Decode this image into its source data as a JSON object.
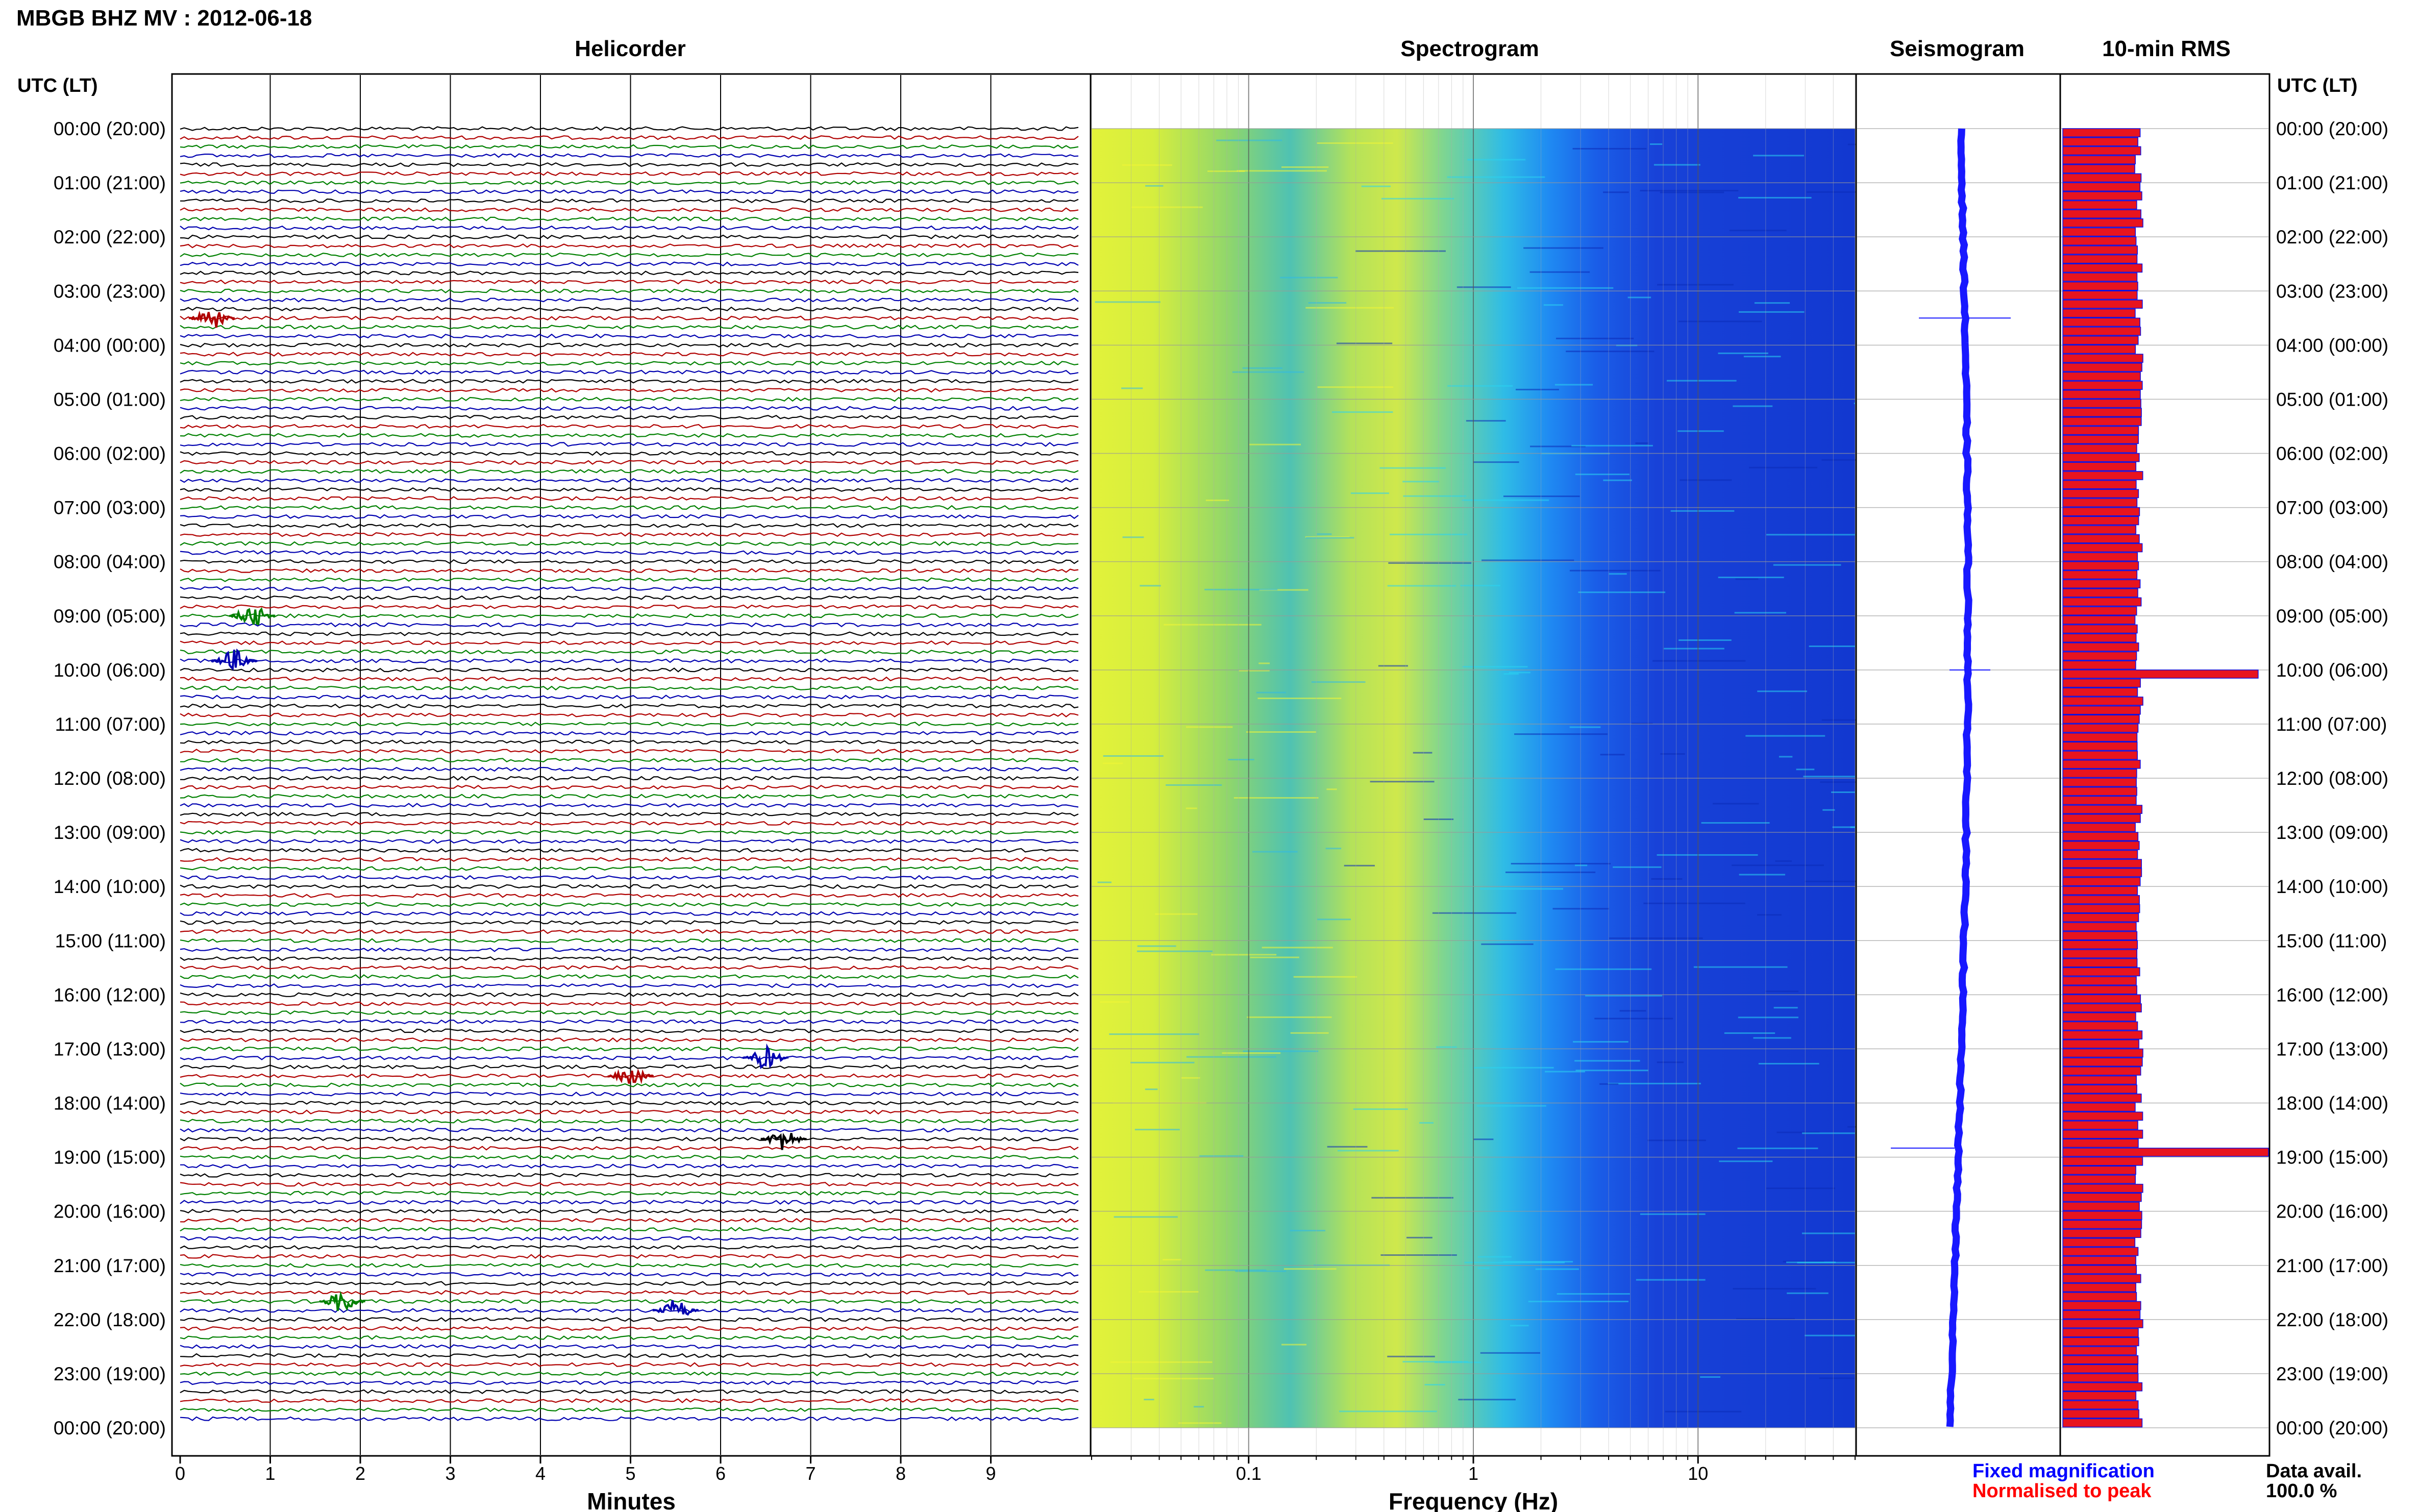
{
  "title": "MBGB BHZ MV : 2012-06-18",
  "panel_titles": {
    "helicorder": "Helicorder",
    "spectrogram": "Spectrogram",
    "seismogram": "Seismogram",
    "rms": "10-min RMS"
  },
  "axis_labels": {
    "time_header_left": "UTC (LT)",
    "time_header_right": "UTC (LT)",
    "helicorder_x": "Minutes",
    "spectrogram_x": "Frequency (Hz)"
  },
  "legend": {
    "fixed": "Fixed magnification",
    "normalised": "Normalised to peak",
    "data_avail_label": "Data avail.",
    "data_avail_value": "100.0 %"
  },
  "colors": {
    "trace_cycle": [
      "#000000",
      "#b00000",
      "#008000",
      "#0000b0"
    ],
    "rms_fill": "#e8141e",
    "rms_outline": "#1010e0",
    "seismogram": "#1818ff",
    "legend_fixed": "#0000ff",
    "legend_normalised": "#ff0000"
  },
  "chart_data": [
    {
      "type": "line",
      "panel": "helicorder",
      "title": "Helicorder",
      "xlabel": "Minutes",
      "x_ticks": [
        "0",
        "1",
        "2",
        "3",
        "4",
        "5",
        "6",
        "7",
        "8",
        "9"
      ],
      "xlim": [
        0,
        10
      ],
      "row_minutes": 10,
      "rows": 144,
      "y_tick_labels": [
        "00:00 (20:00)",
        "01:00 (21:00)",
        "02:00 (22:00)",
        "03:00 (23:00)",
        "04:00 (00:00)",
        "05:00 (01:00)",
        "06:00 (02:00)",
        "07:00 (03:00)",
        "08:00 (04:00)",
        "09:00 (05:00)",
        "10:00 (06:00)",
        "11:00 (07:00)",
        "12:00 (08:00)",
        "13:00 (09:00)",
        "14:00 (10:00)",
        "15:00 (11:00)",
        "16:00 (12:00)",
        "17:00 (13:00)",
        "18:00 (14:00)",
        "19:00 (15:00)",
        "20:00 (16:00)",
        "21:00 (17:00)",
        "22:00 (18:00)",
        "23:00 (19:00)",
        "00:00 (20:00)"
      ],
      "events": [
        {
          "time": "03:30",
          "minute": 0.35
        },
        {
          "time": "09:00",
          "minute": 0.8
        },
        {
          "time": "09:50",
          "minute": 0.6
        },
        {
          "time": "17:10",
          "minute": 6.5
        },
        {
          "time": "17:30",
          "minute": 5.0
        },
        {
          "time": "18:40",
          "minute": 6.7
        },
        {
          "time": "21:40",
          "minute": 1.8
        },
        {
          "time": "21:50",
          "minute": 5.5
        }
      ]
    },
    {
      "type": "heatmap",
      "panel": "spectrogram",
      "title": "Spectrogram",
      "xlabel": "Frequency (Hz)",
      "x_scale": "log",
      "x_ticks": [
        "0.1",
        "1",
        "10"
      ],
      "xlim": [
        0.02,
        50
      ],
      "colormap": "yellow-green-cyan-blue (high to low power)"
    },
    {
      "type": "line",
      "panel": "seismogram",
      "title": "Seismogram",
      "note": "Fixed magnification"
    },
    {
      "type": "bar",
      "panel": "rms",
      "title": "10-min RMS",
      "orientation": "horizontal",
      "normal_level": 0.37,
      "spikes": [
        {
          "time": "10:00",
          "value": 0.95
        },
        {
          "time": "18:50",
          "value": 1.0
        }
      ],
      "data_availability": "100.0 %"
    }
  ]
}
